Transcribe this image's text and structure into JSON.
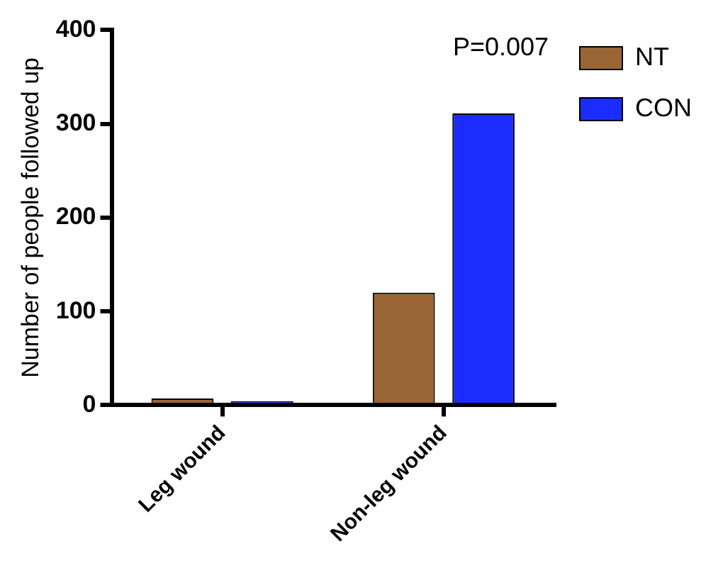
{
  "chart_data": {
    "type": "bar",
    "ylabel": "Number of people followed up",
    "categories": [
      "Leg wound",
      "Non-leg wound"
    ],
    "series": [
      {
        "name": "NT",
        "color": "#9a6535",
        "values": [
          7,
          120
        ]
      },
      {
        "name": "CON",
        "color": "#1a2cff",
        "values": [
          4,
          311
        ]
      }
    ],
    "ylim": [
      0,
      400
    ],
    "yticks": [
      0,
      100,
      200,
      300,
      400
    ],
    "grid": false,
    "legend": "top right",
    "annotations": [
      "P=0.007"
    ]
  }
}
